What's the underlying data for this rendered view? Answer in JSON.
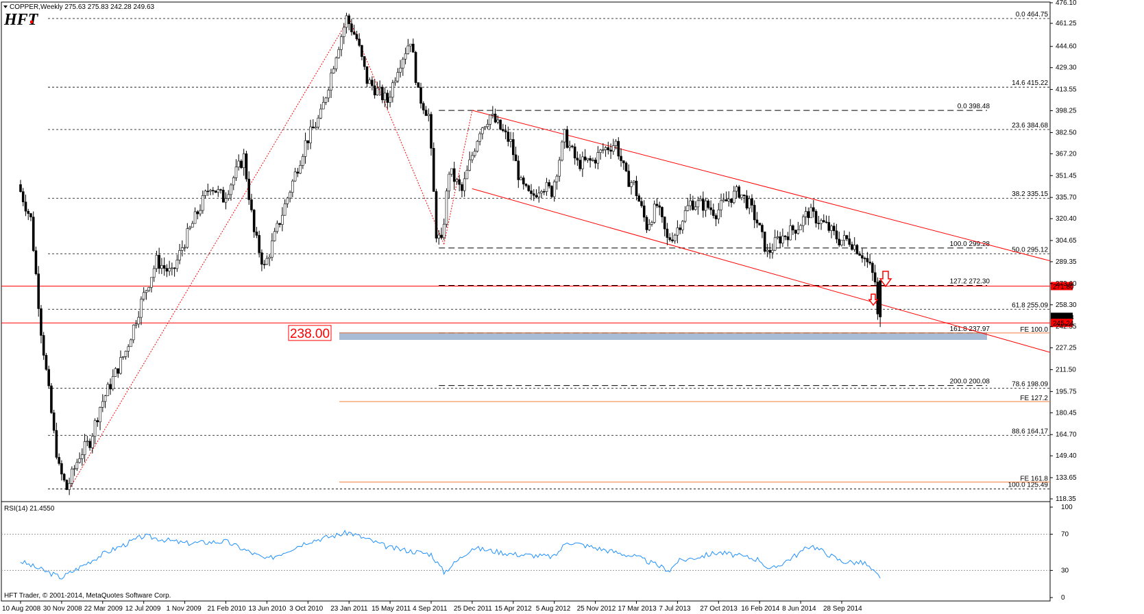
{
  "header": {
    "symbol_info": "COPPER,Weekly  275.63 275.83 242.28 249.63",
    "logo": "HFT"
  },
  "rsi_header": "RSI(14) 21.4550",
  "footer": "HFT Trader, © 2001-2014, MetaQuotes Software Corp.",
  "colors": {
    "bull_candle": "#ffffff",
    "bear_candle": "#000000",
    "channel": "#ff0000",
    "fe_line": "#f07c3c",
    "rsi_line": "#1e90ff",
    "target_zone": "#a9bcd6",
    "label_box": "#ff0000"
  },
  "chart_data": {
    "type": "candlestick",
    "symbol": "COPPER",
    "timeframe": "Weekly",
    "ohlc_last": {
      "open": 275.63,
      "high": 275.83,
      "low": 242.28,
      "close": 249.63
    },
    "y_axis_ticks": [
      "476.10",
      "461.25",
      "444.60",
      "429.30",
      "413.55",
      "398.25",
      "382.50",
      "367.20",
      "351.45",
      "335.70",
      "320.40",
      "304.65",
      "289.35",
      "273.60",
      "258.30",
      "242.55",
      "227.25",
      "211.50",
      "195.75",
      "180.45",
      "164.70",
      "149.40",
      "133.65",
      "118.35"
    ],
    "x_axis_ticks": [
      "10 Aug 2008",
      "30 Nov 2008",
      "22 Mar 2009",
      "12 Jul 2009",
      "1 Nov 2009",
      "21 Feb 2010",
      "13 Jun 2010",
      "3 Oct 2010",
      "23 Jan 2011",
      "15 May 2011",
      "4 Sep 2011",
      "25 Dec 2011",
      "15 Apr 2012",
      "5 Aug 2012",
      "25 Nov 2012",
      "17 Mar 2013",
      "7 Jul 2013",
      "27 Oct 2013",
      "16 Feb 2014",
      "8 Jun 2014",
      "28 Sep 2014"
    ],
    "price_path": [
      [
        "10 Aug 2008",
        345
      ],
      [
        "14 Sep 2008",
        320
      ],
      [
        "12 Oct 2008",
        240
      ],
      [
        "16 Nov 2008",
        165
      ],
      [
        "30 Nov 2008",
        140
      ],
      [
        "21 Dec 2008",
        125.5
      ],
      [
        "25 Jan 2009",
        150
      ],
      [
        "22 Feb 2009",
        160
      ],
      [
        "22 Mar 2009",
        185
      ],
      [
        "26 Apr 2009",
        205
      ],
      [
        "31 May 2009",
        225
      ],
      [
        "12 Jul 2009",
        260
      ],
      [
        "23 Aug 2009",
        290
      ],
      [
        "4 Oct 2009",
        280
      ],
      [
        "1 Nov 2009",
        300
      ],
      [
        "13 Dec 2009",
        325
      ],
      [
        "17 Jan 2010",
        345
      ],
      [
        "21 Feb 2010",
        335
      ],
      [
        "18 Apr 2010",
        365
      ],
      [
        "16 May 2010",
        310
      ],
      [
        "13 Jun 2010",
        285
      ],
      [
        "8 Aug 2010",
        330
      ],
      [
        "3 Oct 2010",
        375
      ],
      [
        "14 Nov 2010",
        395
      ],
      [
        "26 Dec 2010",
        440
      ],
      [
        "23 Jan 2011",
        465
      ],
      [
        "20 Feb 2011",
        450
      ],
      [
        "20 Mar 2011",
        420
      ],
      [
        "15 May 2011",
        405
      ],
      [
        "12 Jun 2011",
        430
      ],
      [
        "17 Jul 2011",
        450
      ],
      [
        "7 Aug 2011",
        410
      ],
      [
        "4 Sep 2011",
        395
      ],
      [
        "25 Sep 2011",
        310
      ],
      [
        "9 Oct 2011",
        302
      ],
      [
        "30 Oct 2011",
        355
      ],
      [
        "4 Dec 2011",
        340
      ],
      [
        "25 Dec 2011",
        360
      ],
      [
        "22 Jan 2012",
        385
      ],
      [
        "19 Feb 2012",
        395
      ],
      [
        "18 Mar 2012",
        385
      ],
      [
        "15 Apr 2012",
        375
      ],
      [
        "13 May 2012",
        345
      ],
      [
        "10 Jun 2012",
        335
      ],
      [
        "8 Jul 2012",
        345
      ],
      [
        "5 Aug 2012",
        340
      ],
      [
        "9 Sep 2012",
        380
      ],
      [
        "14 Oct 2012",
        360
      ],
      [
        "25 Nov 2012",
        362
      ],
      [
        "23 Dec 2012",
        370
      ],
      [
        "27 Jan 2013",
        375
      ],
      [
        "24 Feb 2013",
        350
      ],
      [
        "17 Mar 2013",
        345
      ],
      [
        "21 Apr 2013",
        315
      ],
      [
        "19 May 2013",
        330
      ],
      [
        "16 Jun 2013",
        305
      ],
      [
        "7 Jul 2013",
        310
      ],
      [
        "18 Aug 2013",
        332
      ],
      [
        "29 Sep 2013",
        330
      ],
      [
        "27 Oct 2013",
        325
      ],
      [
        "1 Dec 2013",
        335
      ],
      [
        "29 Dec 2013",
        340
      ],
      [
        "26 Jan 2014",
        330
      ],
      [
        "16 Feb 2014",
        318
      ],
      [
        "16 Mar 2014",
        295
      ],
      [
        "13 Apr 2014",
        305
      ],
      [
        "11 May 2014",
        310
      ],
      [
        "8 Jun 2014",
        315
      ],
      [
        "6 Jul 2014",
        325
      ],
      [
        "24 Aug 2014",
        315
      ],
      [
        "28 Sep 2014",
        305
      ],
      [
        "26 Oct 2014",
        305
      ],
      [
        "30 Nov 2014",
        295
      ],
      [
        "21 Dec 2014",
        285
      ],
      [
        "4 Jan 2015",
        275
      ],
      [
        "11 Jan 2015",
        249.63
      ]
    ],
    "fib_levels_major": [
      {
        "label": "0.0",
        "value": "464.75"
      },
      {
        "label": "14.6",
        "value": "415.22"
      },
      {
        "label": "23.6",
        "value": "384.68"
      },
      {
        "label": "38.2",
        "value": "335.15"
      },
      {
        "label": "50.0",
        "value": "295.12"
      },
      {
        "label": "61.8",
        "value": "255.09"
      },
      {
        "label": "78.6",
        "value": "198.09"
      },
      {
        "label": "88.6",
        "value": "164.17"
      },
      {
        "label": "100.0",
        "value": "125.49"
      }
    ],
    "fib_levels_minor": [
      {
        "label": "0.0",
        "value": "398.48"
      },
      {
        "label": "100.0",
        "value": "299.28"
      },
      {
        "label": "127.2",
        "value": "272.30"
      },
      {
        "label": "161.8",
        "value": "237.97"
      },
      {
        "label": "200.0",
        "value": "200.08"
      }
    ],
    "fe_levels": [
      "FE 100.0",
      "FE 127.2",
      "FE 161.8"
    ],
    "horizontal_lines": [
      "271.80",
      "245.24"
    ],
    "price_markers": [
      "271.80",
      "249.63",
      "245.24"
    ],
    "target_label": "238.00",
    "rsi": {
      "label": "RSI(14) 21.4550",
      "ticks": [
        "100",
        "70",
        "30",
        "0"
      ],
      "path": [
        [
          "10 Aug 2008",
          40
        ],
        [
          "30 Nov 2008",
          22
        ],
        [
          "22 Mar 2009",
          48
        ],
        [
          "12 Jul 2009",
          68
        ],
        [
          "1 Nov 2009",
          60
        ],
        [
          "21 Feb 2010",
          62
        ],
        [
          "13 Jun 2010",
          42
        ],
        [
          "3 Oct 2010",
          62
        ],
        [
          "23 Jan 2011",
          72
        ],
        [
          "15 May 2011",
          55
        ],
        [
          "4 Sep 2011",
          48
        ],
        [
          "9 Oct 2011",
          28
        ],
        [
          "25 Dec 2011",
          55
        ],
        [
          "15 Apr 2012",
          48
        ],
        [
          "5 Aug 2012",
          45
        ],
        [
          "9 Sep 2012",
          62
        ],
        [
          "25 Nov 2012",
          55
        ],
        [
          "17 Mar 2013",
          45
        ],
        [
          "16 Jun 2013",
          30
        ],
        [
          "7 Jul 2013",
          40
        ],
        [
          "27 Oct 2013",
          50
        ],
        [
          "16 Feb 2014",
          42
        ],
        [
          "16 Mar 2014",
          30
        ],
        [
          "8 Jun 2014",
          50
        ],
        [
          "6 Jul 2014",
          58
        ],
        [
          "28 Sep 2014",
          40
        ],
        [
          "30 Nov 2014",
          38
        ],
        [
          "11 Jan 2015",
          21.455
        ]
      ]
    }
  }
}
